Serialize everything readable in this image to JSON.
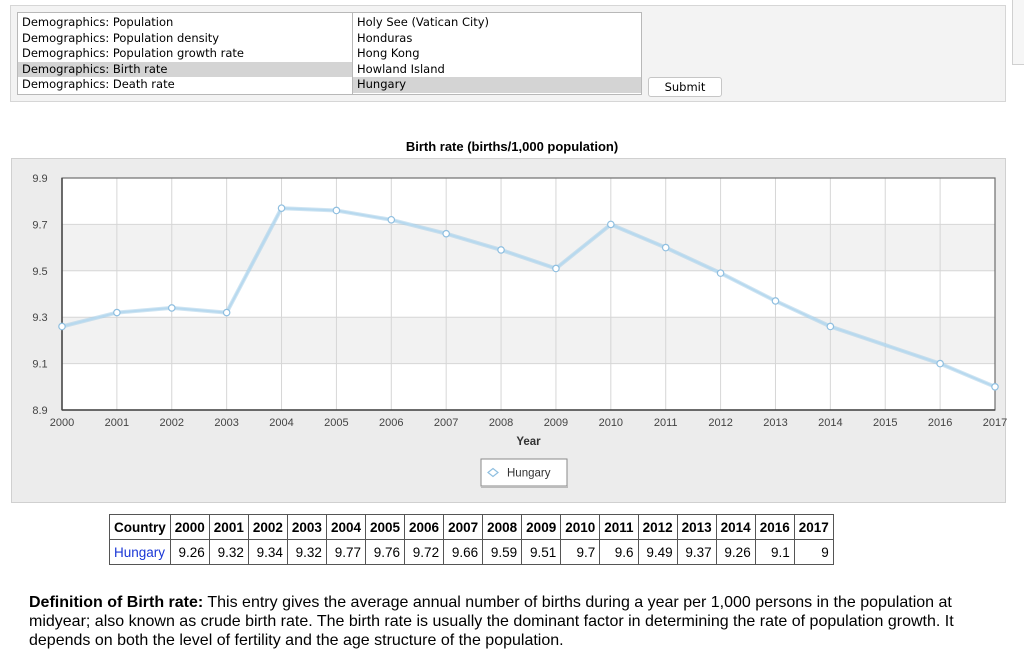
{
  "form": {
    "metrics": [
      {
        "label": "Demographics: Population",
        "selected": false
      },
      {
        "label": "Demographics: Population density",
        "selected": false
      },
      {
        "label": "Demographics: Population growth rate",
        "selected": false
      },
      {
        "label": "Demographics: Birth rate",
        "selected": true
      },
      {
        "label": "Demographics: Death rate",
        "selected": false
      }
    ],
    "countries": [
      {
        "label": "Holy See (Vatican City)",
        "selected": false
      },
      {
        "label": "Honduras",
        "selected": false
      },
      {
        "label": "Hong Kong",
        "selected": false
      },
      {
        "label": "Howland Island",
        "selected": false
      },
      {
        "label": "Hungary",
        "selected": true
      }
    ],
    "submit_label": "Submit"
  },
  "chart_data": {
    "type": "line",
    "title": "Birth rate (births/1,000 population)",
    "xlabel": "Year",
    "ylabel": "",
    "x_ticks": [
      "2000",
      "2001",
      "2002",
      "2003",
      "2004",
      "2005",
      "2006",
      "2007",
      "2008",
      "2009",
      "2010",
      "2011",
      "2012",
      "2013",
      "2014",
      "2015",
      "2016",
      "2017"
    ],
    "y_ticks": [
      "8.9",
      "9.1",
      "9.3",
      "9.5",
      "9.7",
      "9.9"
    ],
    "xlim": [
      2000,
      2017
    ],
    "ylim": [
      8.9,
      9.9
    ],
    "grid": true,
    "legend_position": "bottom-center",
    "series": [
      {
        "name": "Hungary",
        "color": "#a9cfe8",
        "x": [
          2000,
          2001,
          2002,
          2003,
          2004,
          2005,
          2006,
          2007,
          2008,
          2009,
          2010,
          2011,
          2012,
          2013,
          2014,
          2016,
          2017
        ],
        "y": [
          9.26,
          9.32,
          9.34,
          9.32,
          9.77,
          9.76,
          9.72,
          9.66,
          9.59,
          9.51,
          9.7,
          9.6,
          9.49,
          9.37,
          9.26,
          9.1,
          9
        ]
      }
    ]
  },
  "table": {
    "header_label": "Country",
    "years": [
      "2000",
      "2001",
      "2002",
      "2003",
      "2004",
      "2005",
      "2006",
      "2007",
      "2008",
      "2009",
      "2010",
      "2011",
      "2012",
      "2013",
      "2014",
      "2016",
      "2017"
    ],
    "rows": [
      {
        "country": "Hungary",
        "values": [
          "9.26",
          "9.32",
          "9.34",
          "9.32",
          "9.77",
          "9.76",
          "9.72",
          "9.66",
          "9.59",
          "9.51",
          "9.7",
          "9.6",
          "9.49",
          "9.37",
          "9.26",
          "9.1",
          "9"
        ]
      }
    ]
  },
  "definition": {
    "term": "Definition of Birth rate:",
    "text": " This entry gives the average annual number of births during a year per 1,000 persons in the population at midyear; also known as crude birth rate. The birth rate is usually the dominant factor in determining the rate of population growth. It depends on both the level of fertility and the age structure of the population."
  }
}
